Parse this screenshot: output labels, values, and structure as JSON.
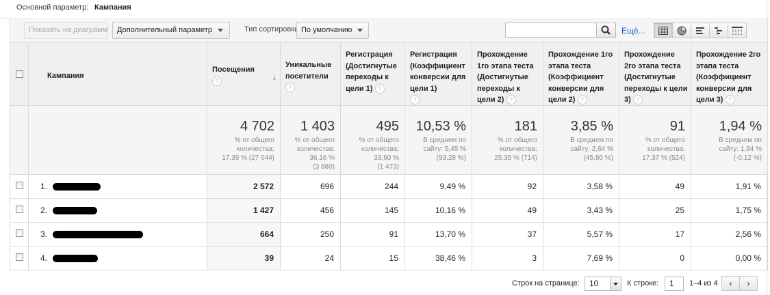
{
  "primary_dimension": {
    "label": "Основной параметр:",
    "value": "Кампания"
  },
  "toolbar": {
    "plot_button": "Показать на диаграмме",
    "secondary_dimension": "Дополнительный параметр",
    "sort_type_label": "Тип сортировки:",
    "sort_type_value": "По умолчанию",
    "search_value": "",
    "more_link": "Ещё...",
    "view_icons": [
      "table-view-icon",
      "pie-view-icon",
      "performance-view-icon",
      "comparison-view-icon",
      "pivot-view-icon"
    ]
  },
  "columns": {
    "campaign": "Кампания",
    "visits": "Посещения",
    "unique": "Уникальные посетители",
    "reg_goal": "Регистрация (Достигнутые переходы к цели 1)",
    "reg_conv": "Регистрация (Коэффициент конверсии для цели 1)",
    "t1_goal": "Прохождение 1го этапа теста (Достигнутые переходы к цели 2)",
    "t1_conv": "Прохождение 1го этапа теста (Коэффициент конверсии для цели 2)",
    "t2_goal": "Прохождение 2го этапа теста (Достигнутые переходы к цели 3)",
    "t2_conv": "Прохождение 2го этапа теста (Коэффициент конверсии для цели 3)"
  },
  "summary": {
    "visits": {
      "big": "4 702",
      "l1": "% от общего",
      "l2": "количества:",
      "l3": "17,39 % (27 044)"
    },
    "unique": {
      "big": "1 403",
      "l1": "% от общего",
      "l2": "количества:",
      "l3": "36,16 %",
      "l4": "(3 880)"
    },
    "reg_goal": {
      "big": "495",
      "l1": "% от общего",
      "l2": "количества:",
      "l3": "33,60 %",
      "l4": "(1 473)"
    },
    "reg_conv": {
      "big": "10,53 %",
      "l1": "В среднем по",
      "l2": "сайту: 5,45 %",
      "l3": "(93,28 %)"
    },
    "t1_goal": {
      "big": "181",
      "l1": "% от общего",
      "l2": "количества:",
      "l3": "25,35 % (714)"
    },
    "t1_conv": {
      "big": "3,85 %",
      "l1": "В среднем по",
      "l2": "сайту: 2,64 %",
      "l3": "(45,80 %)"
    },
    "t2_goal": {
      "big": "91",
      "l1": "% от общего",
      "l2": "количества:",
      "l3": "17,37 % (524)"
    },
    "t2_conv": {
      "big": "1,94 %",
      "l1": "В среднем по",
      "l2": "сайту: 1,94 %",
      "l3": "(-0,12 %)"
    }
  },
  "rows": [
    {
      "num": "1.",
      "visits": "2 572",
      "unique": "696",
      "reg_goal": "244",
      "reg_conv": "9,49 %",
      "t1_goal": "92",
      "t1_conv": "3,58 %",
      "t2_goal": "49",
      "t2_conv": "1,91 %"
    },
    {
      "num": "2.",
      "visits": "1 427",
      "unique": "456",
      "reg_goal": "145",
      "reg_conv": "10,16 %",
      "t1_goal": "49",
      "t1_conv": "3,43 %",
      "t2_goal": "25",
      "t2_conv": "1,75 %"
    },
    {
      "num": "3.",
      "visits": "664",
      "unique": "250",
      "reg_goal": "91",
      "reg_conv": "13,70 %",
      "t1_goal": "37",
      "t1_conv": "5,57 %",
      "t2_goal": "17",
      "t2_conv": "2,56 %"
    },
    {
      "num": "4.",
      "visits": "39",
      "unique": "24",
      "reg_goal": "15",
      "reg_conv": "38,46 %",
      "t1_goal": "3",
      "t1_conv": "7,69 %",
      "t2_goal": "0",
      "t2_conv": "0,00 %"
    }
  ],
  "footer": {
    "rows_per_page_label": "Строк на странице:",
    "rows_per_page_value": "10",
    "goto_label": "К строке:",
    "goto_value": "1",
    "range_text": "1–4 из 4",
    "prev": "‹",
    "next": "›"
  },
  "help_glyph": "?",
  "sort_arrow": "↓"
}
